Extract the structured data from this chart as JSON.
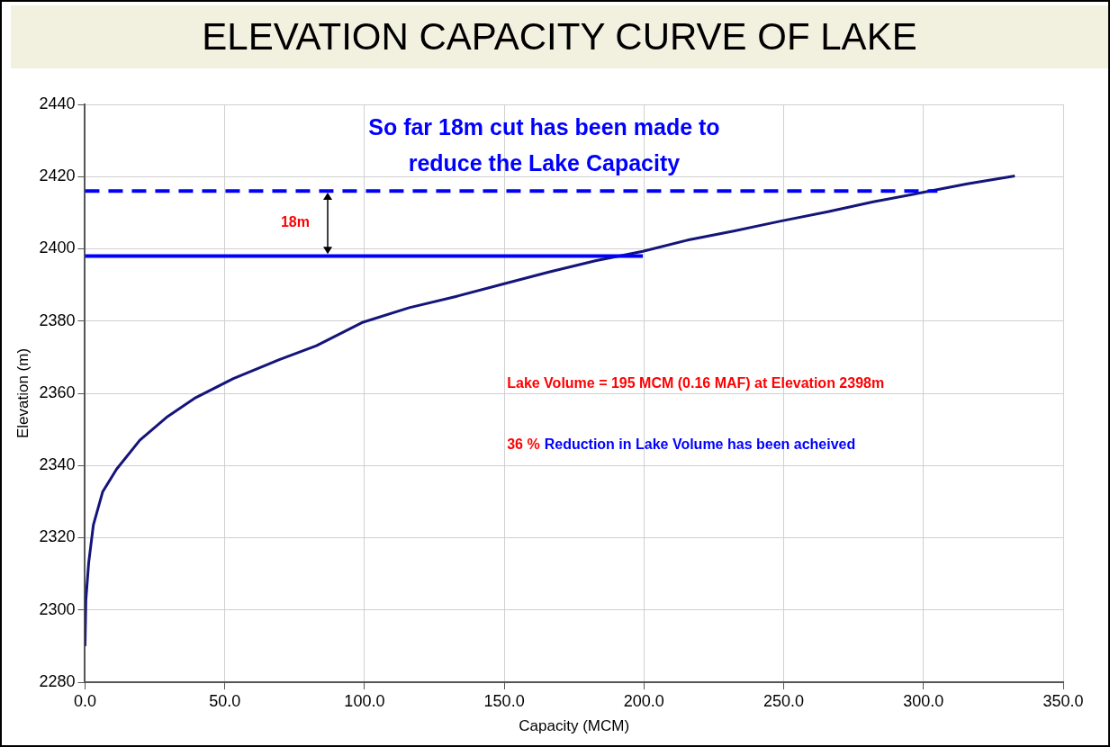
{
  "chart_data": {
    "type": "line",
    "title": "ELEVATION CAPACITY CURVE OF LAKE",
    "xlabel": "Capacity (MCM)",
    "ylabel": "Elevation (m)",
    "xlim": [
      0,
      350
    ],
    "xticks": [
      {
        "value": 0,
        "label": "0.0"
      },
      {
        "value": 50,
        "label": "50.0"
      },
      {
        "value": 100,
        "label": "100.0"
      },
      {
        "value": 150,
        "label": "150.0"
      },
      {
        "value": 200,
        "label": "200.0"
      },
      {
        "value": 250,
        "label": "250.0"
      },
      {
        "value": 300,
        "label": "300.0"
      },
      {
        "value": 350,
        "label": "350.0"
      }
    ],
    "ylim": [
      2280,
      2440
    ],
    "yticks": [
      2280,
      2300,
      2320,
      2340,
      2360,
      2380,
      2400,
      2420,
      2440
    ],
    "grid": true,
    "legend": false,
    "marker": "none",
    "series": [
      {
        "color": "#14147a",
        "line_style": "solid",
        "x": [
          0,
          0.3,
          1.3,
          3,
          6.3,
          11.3,
          19.6,
          29.6,
          39.6,
          52.9,
          69.5,
          82.8,
          99.5,
          116,
          132.7,
          149.4,
          166,
          182.6,
          199.6,
          216,
          232.5,
          249,
          265.8,
          282,
          299,
          315.7,
          332.7
        ],
        "values": [
          2290,
          2302.7,
          2313,
          2323.6,
          2332.7,
          2339,
          2347,
          2353.6,
          2358.8,
          2364,
          2369.3,
          2373.2,
          2379.7,
          2383.7,
          2386.8,
          2390.2,
          2393.6,
          2396.7,
          2399.3,
          2402.5,
          2405,
          2407.7,
          2410.3,
          2413,
          2415.5,
          2418,
          2420.2
        ]
      },
      {
        "color": "#0000ff",
        "line_style": "solid",
        "x": [
          0,
          199.6
        ],
        "values": [
          2398,
          2398
        ]
      },
      {
        "color": "#0000ff",
        "line_style": "dashed",
        "x": [
          0,
          305
        ],
        "values": [
          2416,
          2416
        ]
      }
    ],
    "annotations": [
      "So far 18m cut has been made to reduce the Lake Capacity",
      "18m",
      "Lake Volume = 195 MCM (0.16 MAF)  at Elevation 2398m",
      "36 %",
      "Reduction in Lake Volume has been acheived"
    ]
  }
}
